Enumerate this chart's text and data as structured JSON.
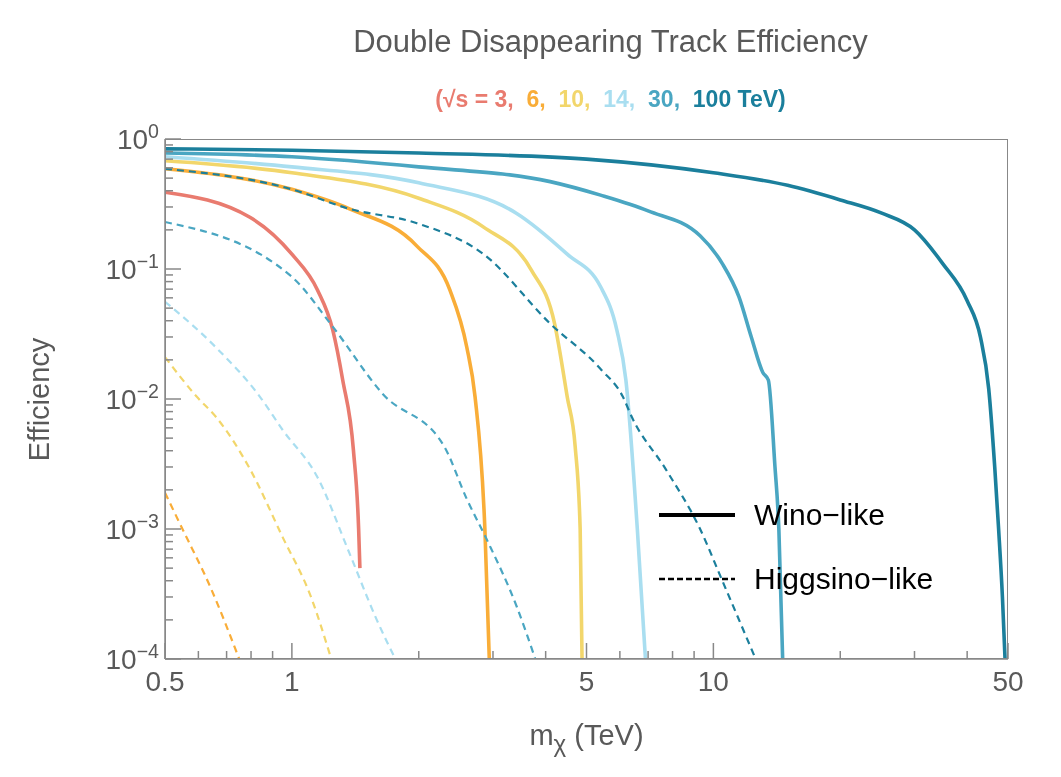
{
  "chart_data": {
    "type": "line",
    "title": "Double Disappearing Track Efficiency",
    "subtitle": "(√s = 3, 6, 10, 14, 30, 100 TeV)",
    "xlabel": "m$_{χ}$ (TeV)",
    "ylabel": "Efficiency",
    "annotations": [
      "Wino−like",
      "Higgsino−like"
    ],
    "log": "xy",
    "xlim": [
      0.5,
      50
    ],
    "ylim": [
      0.0001,
      1
    ],
    "xticks": [
      0.5,
      {
        "value": 0.6,
        "label": null
      },
      {
        "value": 0.7,
        "label": null
      },
      {
        "value": 0.8,
        "label": null
      },
      {
        "value": 0.9,
        "label": null
      },
      1,
      {
        "value": 2,
        "label": null
      },
      {
        "value": 3,
        "label": null
      },
      {
        "value": 4,
        "label": null
      },
      5,
      {
        "value": 6,
        "label": null
      },
      {
        "value": 7,
        "label": null
      },
      {
        "value": 8,
        "label": null
      },
      {
        "value": 9,
        "label": null
      },
      10,
      {
        "value": 20,
        "label": null
      },
      {
        "value": 30,
        "label": null
      },
      {
        "value": 40,
        "label": null
      },
      50
    ],
    "yticks": [
      {
        "value": 0.0001,
        "label": "10$^{−4}$"
      },
      {
        "value": 0.0002,
        "label": null
      },
      {
        "value": 0.0003,
        "label": null
      },
      {
        "value": 0.0004,
        "label": null
      },
      {
        "value": 0.0005,
        "label": null
      },
      {
        "value": 0.0006,
        "label": null
      },
      {
        "value": 0.0007,
        "label": null
      },
      {
        "value": 0.0008,
        "label": null
      },
      {
        "value": 0.0009,
        "label": null
      },
      {
        "value": 0.001,
        "label": "10$^{−3}$"
      },
      {
        "value": 0.002,
        "label": null
      },
      {
        "value": 0.003,
        "label": null
      },
      {
        "value": 0.004,
        "label": null
      },
      {
        "value": 0.005,
        "label": null
      },
      {
        "value": 0.006,
        "label": null
      },
      {
        "value": 0.007,
        "label": null
      },
      {
        "value": 0.008,
        "label": null
      },
      {
        "value": 0.009,
        "label": null
      },
      {
        "value": 0.01,
        "label": "10$^{−2}$"
      },
      {
        "value": 0.02,
        "label": null
      },
      {
        "value": 0.03,
        "label": null
      },
      {
        "value": 0.04,
        "label": null
      },
      {
        "value": 0.05,
        "label": null
      },
      {
        "value": 0.06,
        "label": null
      },
      {
        "value": 0.07,
        "label": null
      },
      {
        "value": 0.08,
        "label": null
      },
      {
        "value": 0.09,
        "label": null
      },
      {
        "value": 0.1,
        "label": "10$^{−1}$"
      },
      {
        "value": 0.2,
        "label": null
      },
      {
        "value": 0.3,
        "label": null
      },
      {
        "value": 0.4,
        "label": null
      },
      {
        "value": 0.5,
        "label": null
      },
      {
        "value": 0.6,
        "label": null
      },
      {
        "value": 0.7,
        "label": null
      },
      {
        "value": 0.8,
        "label": null
      },
      {
        "value": 0.9,
        "label": null
      },
      {
        "value": 1,
        "label": "10$^{0}$"
      }
    ],
    "series": [
      {
        "color": "#e97b6f",
        "line_style": "solid",
        "x": [
          0.5,
          0.795,
          1,
          1.15,
          1.25,
          1.32,
          1.4,
          1.44,
          1.45
        ],
        "values": [
          0.39,
          0.25,
          0.13,
          0.069,
          0.034,
          0.014,
          0.004,
          0.001,
          0.0005
        ]
      },
      {
        "color": "#f9ad38",
        "line_style": "solid",
        "x": [
          0.5,
          1,
          1.37,
          1.98,
          2.37,
          2.6,
          2.72,
          2.87,
          2.94
        ],
        "values": [
          0.59,
          0.41,
          0.29,
          0.15,
          0.069,
          0.025,
          0.0104,
          0.001,
          0.0001
        ]
      },
      {
        "color": "#f2d66b",
        "line_style": "solid",
        "x": [
          0.5,
          1,
          2,
          2.85,
          3.7,
          4.2,
          4.5,
          4.7,
          4.83,
          4.88
        ],
        "values": [
          0.68,
          0.55,
          0.35,
          0.21,
          0.098,
          0.038,
          0.0104,
          0.0043,
          0.001,
          0.0001
        ]
      },
      {
        "color": "#a9def0",
        "line_style": "solid",
        "x": [
          0.5,
          1,
          2,
          3.4,
          4.5,
          5.4,
          5.9,
          6.2,
          6.6,
          6.9
        ],
        "values": [
          0.73,
          0.61,
          0.46,
          0.27,
          0.13,
          0.073,
          0.034,
          0.014,
          0.001,
          0.0001
        ]
      },
      {
        "color": "#4aa6c2",
        "line_style": "solid",
        "x": [
          0.5,
          1,
          2,
          4.1,
          5.4,
          7,
          9.3,
          10.5,
          11.5,
          12.3,
          13.1,
          13.5,
          14,
          14.3,
          14.6
        ],
        "values": [
          0.78,
          0.73,
          0.61,
          0.47,
          0.37,
          0.28,
          0.18,
          0.11,
          0.061,
          0.03,
          0.016,
          0.014,
          0.003,
          0.001,
          0.0001
        ]
      },
      {
        "color": "#1b7f9c",
        "line_style": "solid",
        "x": [
          0.5,
          1,
          2,
          5,
          10,
          15,
          20,
          25,
          30,
          35,
          40,
          43,
          45,
          46.5,
          47.5,
          48.5,
          49.2
        ],
        "values": [
          0.84,
          0.82,
          0.78,
          0.7,
          0.55,
          0.44,
          0.34,
          0.27,
          0.2,
          0.11,
          0.057,
          0.03,
          0.012,
          0.003,
          0.001,
          0.0003,
          0.0001
        ]
      },
      {
        "color": "#f9ad38",
        "line_style": "dashed",
        "x": [
          0.5,
          0.55,
          0.64,
          0.75
        ],
        "values": [
          0.0019,
          0.001,
          0.00036,
          0.0001
        ]
      },
      {
        "color": "#f2d66b",
        "line_style": "dashed",
        "x": [
          0.5,
          0.595,
          0.66,
          0.795,
          0.95,
          1.11,
          1.24
        ],
        "values": [
          0.021,
          0.0104,
          0.0073,
          0.0029,
          0.00087,
          0.0003,
          0.0001
        ]
      },
      {
        "color": "#a9def0",
        "line_style": "dashed",
        "x": [
          0.5,
          0.66,
          0.84,
          0.95,
          1.15,
          1.37,
          1.59,
          1.76
        ],
        "values": [
          0.056,
          0.025,
          0.0104,
          0.0058,
          0.0025,
          0.00065,
          0.0002,
          0.0001
        ]
      },
      {
        "color": "#4aa6c2",
        "line_style": "dashed",
        "x": [
          0.5,
          1,
          1.25,
          1.64,
          2.3,
          2.6,
          2.9,
          3.42,
          3.78
        ],
        "values": [
          0.23,
          0.087,
          0.036,
          0.011,
          0.0043,
          0.0017,
          0.00083,
          0.00025,
          0.0001
        ]
      },
      {
        "color": "#1b7f9c",
        "line_style": "dashed",
        "x": [
          0.5,
          1,
          1.37,
          1.98,
          2.85,
          4.1,
          5.4,
          6.1,
          6.4,
          7.7,
          9.3,
          10.5,
          12.6
        ],
        "values": [
          0.59,
          0.41,
          0.29,
          0.225,
          0.13,
          0.038,
          0.017,
          0.0104,
          0.0073,
          0.0029,
          0.001,
          0.0004,
          0.0001
        ]
      }
    ]
  }
}
